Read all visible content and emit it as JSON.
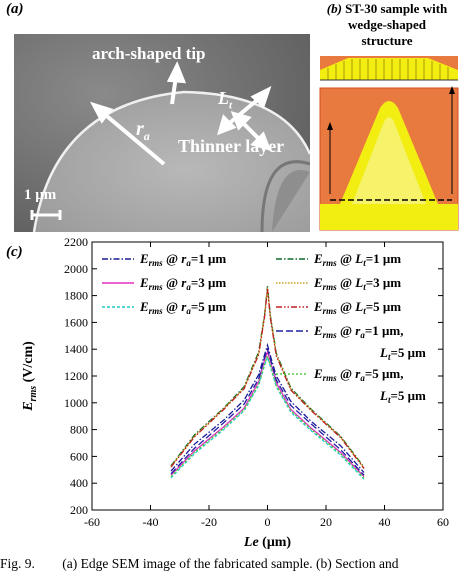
{
  "panel_a": {
    "label": "(a)",
    "tip_label": "arch-shaped tip",
    "radius_label": "r",
    "radius_sub": "a",
    "length_label": "L",
    "length_sub": "t",
    "layer_label": "Thinner layer",
    "scale_label": "1 μm"
  },
  "panel_b": {
    "label": "(b)",
    "title_line1": "ST-30 sample with",
    "title_line2": "wedge-shaped",
    "title_line3": "structure",
    "colors": {
      "orange": "#E8793F",
      "yellow": "#F2EE12",
      "light_yellow": "#F6F380"
    }
  },
  "panel_c": {
    "label": "(c)"
  },
  "chart_data": {
    "type": "line",
    "xlabel": "Le (μm)",
    "ylabel": "Erms (V/cm)",
    "xlim": [
      -60,
      60
    ],
    "ylim": [
      200,
      2200
    ],
    "xticks": [
      -60,
      -40,
      -20,
      0,
      20,
      40,
      60
    ],
    "yticks": [
      200,
      400,
      600,
      800,
      1000,
      1200,
      1400,
      1600,
      1800,
      2000,
      2200
    ],
    "grid": false,
    "legend_placement": "top",
    "series": [
      {
        "name": "Erms @ ra=1 μm",
        "legend": {
          "e": "E",
          "sub": "rms",
          "p": "r",
          "ps": "a",
          "v": "=1 μm"
        },
        "color": "#1a1a99",
        "dash": "6,2,1.5,2",
        "x": [
          -33,
          -25,
          -15,
          -8,
          -3,
          -1,
          0,
          1,
          3,
          8,
          15,
          25,
          33
        ],
        "y": [
          490,
          690,
          870,
          1020,
          1210,
          1360,
          1430,
          1350,
          1200,
          1010,
          860,
          680,
          480
        ]
      },
      {
        "name": "Erms @ ra=3 μm",
        "legend": {
          "e": "E",
          "sub": "rms",
          "p": "r",
          "ps": "a",
          "v": "=3 μm"
        },
        "color": "#e030c0",
        "dash": "",
        "x": [
          -33,
          -25,
          -15,
          -8,
          -3,
          -1,
          0,
          1,
          3,
          8,
          15,
          25,
          33
        ],
        "y": [
          460,
          640,
          820,
          960,
          1160,
          1320,
          1380,
          1310,
          1150,
          950,
          810,
          630,
          450
        ]
      },
      {
        "name": "Erms @ ra=5 μm",
        "legend": {
          "e": "E",
          "sub": "rms",
          "p": "r",
          "ps": "a",
          "v": "=5 μm"
        },
        "color": "#20c8c8",
        "dash": "3,2",
        "x": [
          -33,
          -25,
          -15,
          -8,
          -3,
          -1,
          0,
          1,
          3,
          8,
          15,
          25,
          33
        ],
        "y": [
          440,
          620,
          800,
          940,
          1130,
          1280,
          1340,
          1270,
          1120,
          930,
          790,
          610,
          430
        ]
      },
      {
        "name": "Erms @ Lt=1 μm",
        "legend": {
          "e": "E",
          "sub": "rms",
          "p": "L",
          "ps": "t",
          "v": "=1 μm"
        },
        "color": "#0a6a2a",
        "dash": "6,2,1.5,2",
        "x": [
          -33,
          -25,
          -15,
          -8,
          -3,
          -1,
          0,
          1,
          3,
          8,
          15,
          25,
          33
        ],
        "y": [
          530,
          760,
          960,
          1120,
          1380,
          1660,
          1870,
          1650,
          1370,
          1110,
          950,
          750,
          520
        ]
      },
      {
        "name": "Erms @ Lt=3 μm",
        "legend": {
          "e": "E",
          "sub": "rms",
          "p": "L",
          "ps": "t",
          "v": "=3 μm"
        },
        "color": "#c8a020",
        "dash": "1.5,1.5",
        "x": [
          -33,
          -25,
          -15,
          -8,
          -3,
          -1,
          0,
          1,
          3,
          8,
          15,
          25,
          33
        ],
        "y": [
          525,
          750,
          955,
          1110,
          1370,
          1650,
          1860,
          1640,
          1360,
          1100,
          945,
          745,
          515
        ]
      },
      {
        "name": "Erms @ Lt=5 μm",
        "legend": {
          "e": "E",
          "sub": "rms",
          "p": "L",
          "ps": "t",
          "v": "=5 μm"
        },
        "color": "#c02020",
        "dash": "6,2,1.5,2,1.5,2",
        "x": [
          -33,
          -25,
          -15,
          -8,
          -3,
          -1,
          0,
          1,
          3,
          8,
          15,
          25,
          33
        ],
        "y": [
          520,
          745,
          950,
          1105,
          1360,
          1640,
          1850,
          1630,
          1350,
          1095,
          940,
          740,
          510
        ]
      },
      {
        "name": "Erms @ ra=1 μm, Lt=5 μm",
        "legend": {
          "e": "E",
          "sub": "rms",
          "p": "r",
          "ps": "a",
          "v": "=1 μm,",
          "l2": "L",
          "l2s": "t",
          "l2v": "=5 μm"
        },
        "color": "#2020a0",
        "dash": "7,3",
        "x": [
          -33,
          -25,
          -15,
          -8,
          -3,
          -1,
          0,
          1,
          3,
          8,
          15,
          25,
          33
        ],
        "y": [
          470,
          660,
          850,
          990,
          1180,
          1340,
          1400,
          1330,
          1170,
          980,
          840,
          650,
          460
        ]
      },
      {
        "name": "Erms @ ra=5 μm, Lt=5 μm",
        "legend": {
          "e": "E",
          "sub": "rms",
          "p": "r",
          "ps": "a",
          "v": "=5 μm,",
          "l2": "L",
          "l2s": "t",
          "l2v": "=5 μm"
        },
        "color": "#50d040",
        "dash": "2,2",
        "x": [
          -33,
          -25,
          -15,
          -8,
          -3,
          -1,
          0,
          1,
          3,
          8,
          15,
          25,
          33
        ],
        "y": [
          450,
          630,
          810,
          950,
          1140,
          1290,
          1350,
          1280,
          1130,
          940,
          800,
          620,
          440
        ]
      }
    ]
  },
  "caption": {
    "prefix": "Fig.  9.",
    "text": "(a)  Edge  SEM  image  of  the  fabricated  sample.  (b)  Section  and"
  }
}
